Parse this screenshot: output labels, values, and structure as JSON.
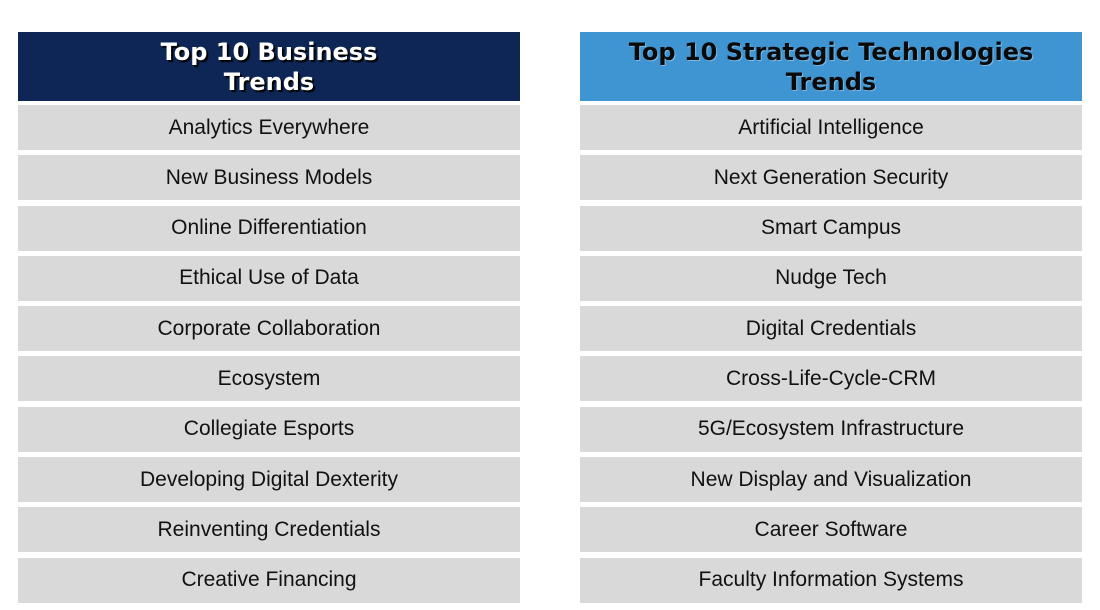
{
  "colors": {
    "left_header_bg": "#0e2656",
    "right_header_bg": "#3f95d2",
    "row_bg": "#d9d9d9"
  },
  "business": {
    "title": "Top 10 Business\nTrends",
    "items": [
      "Analytics Everywhere",
      "New Business Models",
      "Online Differentiation",
      "Ethical Use of Data",
      "Corporate Collaboration",
      "Ecosystem",
      "Collegiate Esports",
      "Developing Digital Dexterity",
      "Reinventing Credentials",
      "Creative Financing"
    ]
  },
  "technologies": {
    "title": "Top 10 Strategic Technologies\nTrends",
    "items": [
      "Artificial Intelligence",
      "Next Generation Security",
      "Smart Campus",
      "Nudge Tech",
      "Digital Credentials",
      "Cross-Life-Cycle-CRM",
      "5G/Ecosystem Infrastructure",
      "New Display and Visualization",
      "Career Software",
      "Faculty Information Systems"
    ]
  }
}
